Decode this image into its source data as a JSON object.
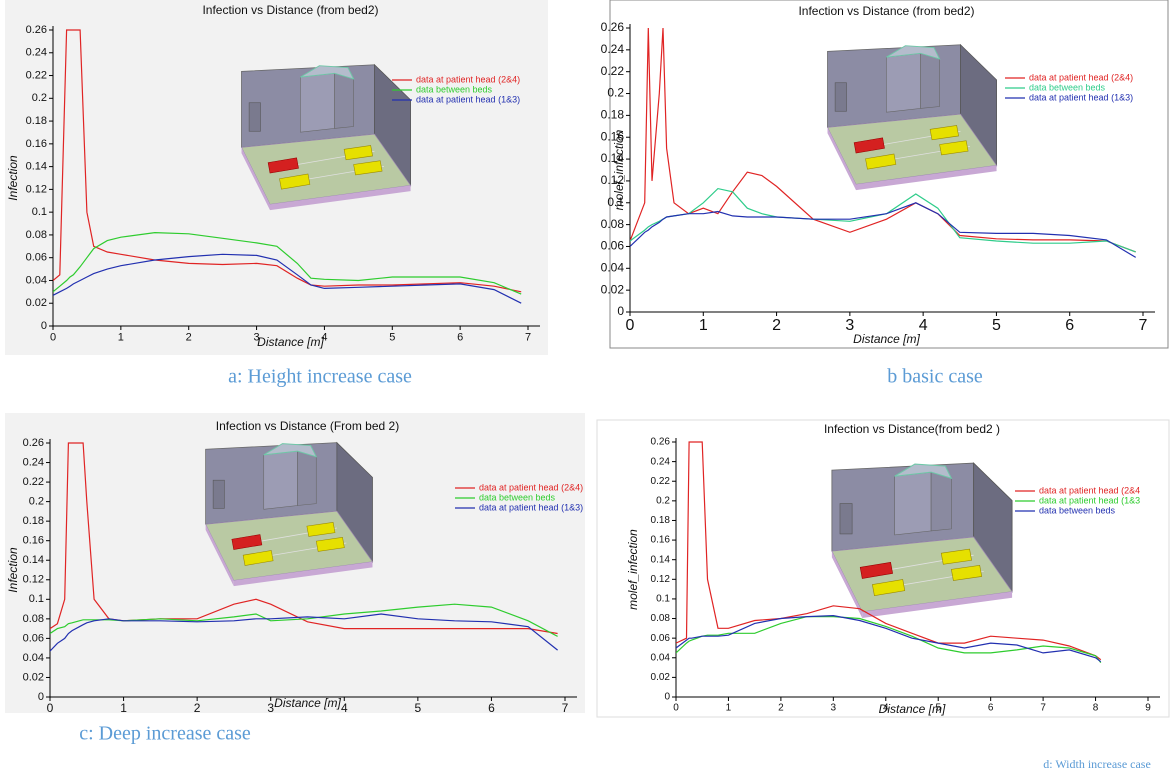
{
  "chart_data": [
    {
      "type": "line",
      "title": "Infection vs Distance (from bed2)",
      "x_label": "Distance [m]",
      "y_label": "Infection",
      "caption": "a: Height increase case",
      "x": [
        0,
        0.1,
        0.2,
        0.25,
        0.3,
        0.4,
        0.5,
        0.6,
        0.8,
        1,
        1.5,
        2,
        2.5,
        3,
        3.3,
        3.6,
        3.8,
        4,
        4.5,
        5,
        5.5,
        6,
        6.5,
        6.9
      ],
      "xlim": [
        0,
        7
      ],
      "xticks": [
        0,
        1,
        2,
        3,
        4,
        5,
        6,
        7
      ],
      "ylim": [
        0,
        0.26
      ],
      "yticks": [
        0,
        0.02,
        0.04,
        0.06,
        0.08,
        0.1,
        0.12,
        0.14,
        0.16,
        0.18,
        0.2,
        0.22,
        0.24,
        0.26
      ],
      "series": [
        {
          "name": "data at patient head (2&4)",
          "color": "#e02424",
          "values": [
            0.04,
            0.045,
            0.26,
            0.26,
            0.26,
            0.26,
            0.1,
            0.07,
            0.065,
            0.063,
            0.058,
            0.055,
            0.054,
            0.055,
            0.053,
            0.042,
            0.036,
            0.035,
            0.036,
            0.036,
            0.037,
            0.038,
            0.035,
            0.03
          ]
        },
        {
          "name": "data between beds",
          "color": "#2ecc2e",
          "values": [
            0.03,
            0.035,
            0.04,
            0.043,
            0.045,
            0.052,
            0.06,
            0.068,
            0.075,
            0.078,
            0.082,
            0.081,
            0.077,
            0.073,
            0.07,
            0.055,
            0.042,
            0.041,
            0.04,
            0.043,
            0.043,
            0.043,
            0.038,
            0.028
          ]
        },
        {
          "name": "data at patient head (1&3)",
          "color": "#2230b0",
          "values": [
            0.027,
            0.03,
            0.033,
            0.035,
            0.037,
            0.04,
            0.043,
            0.046,
            0.05,
            0.053,
            0.058,
            0.061,
            0.063,
            0.062,
            0.058,
            0.045,
            0.036,
            0.033,
            0.034,
            0.035,
            0.036,
            0.037,
            0.032,
            0.02
          ]
        }
      ]
    },
    {
      "type": "line",
      "title": "Infection vs Distance (from bed2)",
      "x_label": "Distance [m]",
      "y_label": "molef_infection",
      "caption": "b basic case",
      "x": [
        0,
        0.2,
        0.25,
        0.3,
        0.4,
        0.45,
        0.5,
        0.6,
        0.8,
        1,
        1.2,
        1.4,
        1.6,
        1.8,
        2,
        2.5,
        3,
        3.5,
        3.9,
        4.2,
        4.5,
        5,
        5.5,
        6,
        6.5,
        6.9
      ],
      "xlim": [
        0,
        7
      ],
      "xticks": [
        0,
        1,
        2,
        3,
        4,
        5,
        6,
        7
      ],
      "ylim": [
        0,
        0.26
      ],
      "yticks": [
        0,
        0.02,
        0.04,
        0.06,
        0.08,
        0.1,
        0.12,
        0.14,
        0.16,
        0.18,
        0.2,
        0.22,
        0.24,
        0.26
      ],
      "series": [
        {
          "name": "data at patient head (2&4)",
          "color": "#e02424",
          "values": [
            0.065,
            0.1,
            0.26,
            0.12,
            0.2,
            0.26,
            0.15,
            0.1,
            0.09,
            0.095,
            0.09,
            0.11,
            0.128,
            0.125,
            0.115,
            0.085,
            0.073,
            0.085,
            0.1,
            0.09,
            0.07,
            0.067,
            0.066,
            0.066,
            0.065,
            0.055
          ]
        },
        {
          "name": "data between beds",
          "color": "#2ecc8a",
          "values": [
            0.065,
            0.075,
            0.078,
            0.08,
            0.083,
            0.085,
            0.087,
            0.088,
            0.09,
            0.1,
            0.113,
            0.11,
            0.095,
            0.09,
            0.087,
            0.085,
            0.083,
            0.09,
            0.108,
            0.095,
            0.068,
            0.065,
            0.063,
            0.063,
            0.065,
            0.055
          ]
        },
        {
          "name": "data at patient head (1&3)",
          "color": "#2230b0",
          "values": [
            0.06,
            0.073,
            0.075,
            0.078,
            0.082,
            0.085,
            0.087,
            0.088,
            0.09,
            0.09,
            0.092,
            0.088,
            0.087,
            0.087,
            0.087,
            0.085,
            0.085,
            0.09,
            0.1,
            0.09,
            0.073,
            0.072,
            0.072,
            0.07,
            0.066,
            0.05
          ]
        }
      ]
    },
    {
      "type": "line",
      "title": "Infection vs Distance (From bed 2)",
      "x_label": "Distance [m]",
      "y_label": "Infection",
      "caption": "c: Deep increase case",
      "x": [
        0,
        0.1,
        0.2,
        0.25,
        0.3,
        0.4,
        0.45,
        0.5,
        0.6,
        0.8,
        1,
        1.5,
        2,
        2.5,
        2.8,
        3,
        3.5,
        4,
        4.5,
        5,
        5.5,
        6,
        6.5,
        6.9
      ],
      "xlim": [
        0,
        7
      ],
      "xticks": [
        0,
        1,
        2,
        3,
        4,
        5,
        6,
        7
      ],
      "ylim": [
        0,
        0.26
      ],
      "yticks": [
        0,
        0.02,
        0.04,
        0.06,
        0.08,
        0.1,
        0.12,
        0.14,
        0.16,
        0.18,
        0.2,
        0.22,
        0.24,
        0.26
      ],
      "series": [
        {
          "name": "data at patient head (2&4)",
          "color": "#e02424",
          "values": [
            0.07,
            0.075,
            0.1,
            0.26,
            0.26,
            0.26,
            0.26,
            0.2,
            0.1,
            0.08,
            0.078,
            0.08,
            0.08,
            0.095,
            0.1,
            0.095,
            0.077,
            0.07,
            0.07,
            0.07,
            0.07,
            0.07,
            0.07,
            0.065
          ]
        },
        {
          "name": "data between beds",
          "color": "#2ecc2e",
          "values": [
            0.065,
            0.07,
            0.072,
            0.075,
            0.076,
            0.078,
            0.079,
            0.079,
            0.079,
            0.079,
            0.078,
            0.08,
            0.078,
            0.082,
            0.085,
            0.078,
            0.08,
            0.085,
            0.088,
            0.092,
            0.095,
            0.092,
            0.078,
            0.062
          ]
        },
        {
          "name": "data at patient head (1&3)",
          "color": "#2230b0",
          "values": [
            0.047,
            0.055,
            0.06,
            0.065,
            0.068,
            0.072,
            0.074,
            0.076,
            0.078,
            0.08,
            0.078,
            0.078,
            0.077,
            0.078,
            0.08,
            0.08,
            0.082,
            0.08,
            0.085,
            0.08,
            0.078,
            0.077,
            0.072,
            0.048
          ]
        }
      ]
    },
    {
      "type": "line",
      "title": "Infection vs Distance(from bed2 )",
      "x_label": "Distance [m]",
      "y_label": "molef_infection",
      "caption": "d: Width increase case",
      "x": [
        0,
        0.2,
        0.25,
        0.3,
        0.4,
        0.5,
        0.6,
        0.8,
        1,
        1.5,
        2,
        2.5,
        3,
        3.5,
        4,
        4.5,
        5,
        5.5,
        6,
        6.5,
        7,
        7.5,
        8,
        8.1
      ],
      "xlim": [
        0,
        9
      ],
      "xticks": [
        0,
        1,
        2,
        3,
        4,
        5,
        6,
        7,
        8,
        9
      ],
      "ylim": [
        0,
        0.26
      ],
      "yticks": [
        0,
        0.02,
        0.04,
        0.06,
        0.08,
        0.1,
        0.12,
        0.14,
        0.16,
        0.18,
        0.2,
        0.22,
        0.24,
        0.26
      ],
      "series": [
        {
          "name": "data at patient head (2&4",
          "color": "#e02424",
          "values": [
            0.055,
            0.06,
            0.26,
            0.26,
            0.26,
            0.26,
            0.12,
            0.07,
            0.07,
            0.078,
            0.08,
            0.085,
            0.093,
            0.09,
            0.075,
            0.065,
            0.055,
            0.055,
            0.062,
            0.06,
            0.058,
            0.052,
            0.042,
            0.038
          ]
        },
        {
          "name": "data at patient head (1&3",
          "color": "#2ecc2e",
          "values": [
            0.045,
            0.055,
            0.057,
            0.058,
            0.06,
            0.062,
            0.063,
            0.063,
            0.065,
            0.065,
            0.075,
            0.082,
            0.082,
            0.08,
            0.072,
            0.062,
            0.05,
            0.045,
            0.045,
            0.048,
            0.052,
            0.05,
            0.042,
            0.035
          ]
        },
        {
          "name": "data between beds",
          "color": "#2230b0",
          "values": [
            0.05,
            0.058,
            0.06,
            0.06,
            0.061,
            0.062,
            0.062,
            0.062,
            0.063,
            0.075,
            0.08,
            0.082,
            0.083,
            0.078,
            0.07,
            0.06,
            0.055,
            0.05,
            0.055,
            0.053,
            0.045,
            0.048,
            0.04,
            0.036
          ]
        }
      ]
    }
  ]
}
